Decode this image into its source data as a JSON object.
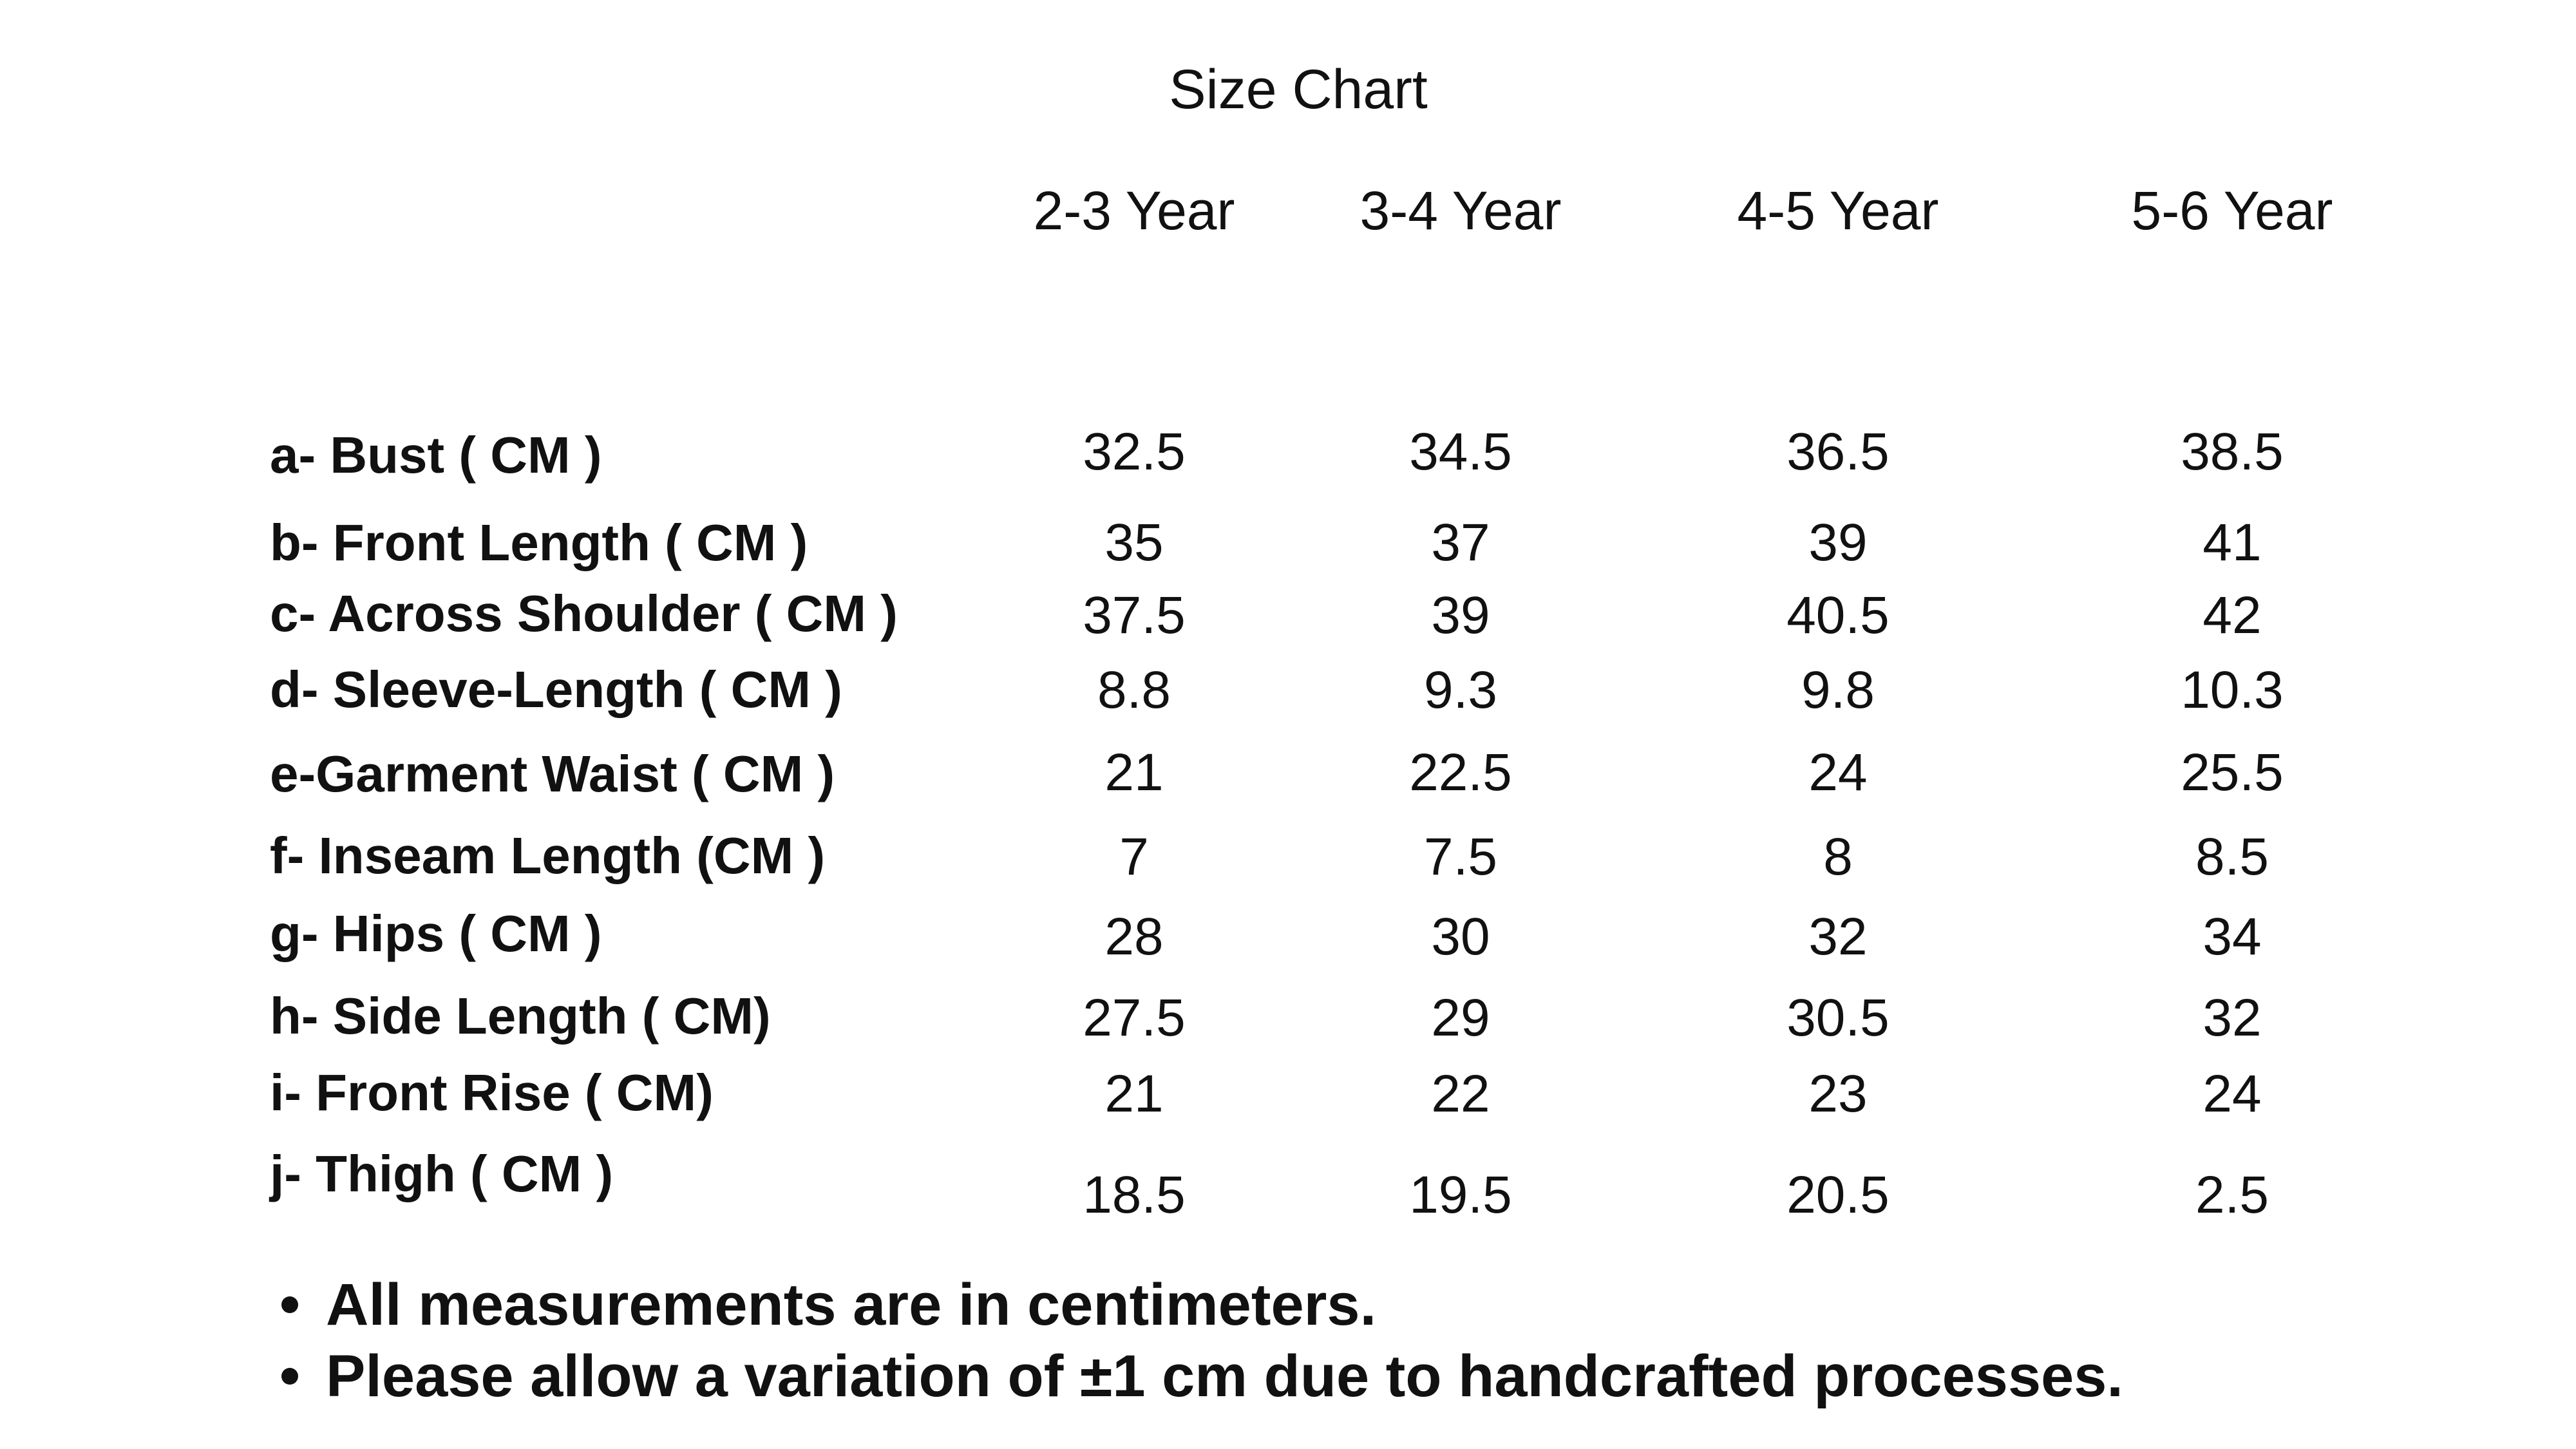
{
  "title": "Size Chart",
  "table": {
    "columns": [
      "2-3 Year",
      "3-4 Year",
      "4-5 Year",
      "5-6 Year"
    ],
    "rows": [
      {
        "label": "a- Bust ( CM )",
        "values": [
          "32.5",
          "34.5",
          "36.5",
          "38.5"
        ]
      },
      {
        "label": "b- Front Length ( CM )",
        "values": [
          "35",
          "37",
          "39",
          "41"
        ]
      },
      {
        "label": "c- Across Shoulder ( CM )",
        "values": [
          "37.5",
          "39",
          "40.5",
          "42"
        ]
      },
      {
        "label": "d- Sleeve-Length ( CM )",
        "values": [
          "8.8",
          "9.3",
          "9.8",
          "10.3"
        ]
      },
      {
        "label": "e-Garment Waist ( CM  )",
        "values": [
          "21",
          "22.5",
          "24",
          "25.5"
        ]
      },
      {
        "label": "f- Inseam Length (CM )",
        "values": [
          "7",
          "7.5",
          "8",
          "8.5"
        ]
      },
      {
        "label": "g- Hips ( CM )",
        "values": [
          "28",
          "30",
          "32",
          "34"
        ]
      },
      {
        "label": "h- Side Length ( CM)",
        "values": [
          "27.5",
          "29",
          "30.5",
          "32"
        ]
      },
      {
        "label": "i- Front Rise ( CM)",
        "values": [
          "21",
          "22",
          "23",
          "24"
        ]
      },
      {
        "label": "j- Thigh ( CM )",
        "values": [
          "18.5",
          "19.5",
          "20.5",
          "2.5"
        ]
      }
    ]
  },
  "notes": [
    "All measurements are in centimeters.",
    "Please allow a variation of ±1 cm due to handcrafted processes."
  ]
}
